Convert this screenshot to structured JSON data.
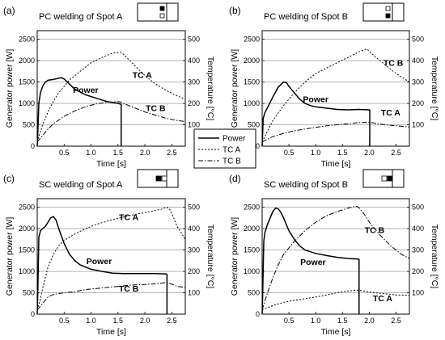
{
  "chart_data": {
    "legend": {
      "entries": [
        {
          "label": "Power",
          "style": "solid"
        },
        {
          "label": "TC A",
          "style": "dotted"
        },
        {
          "label": "TC B",
          "style": "dashdot"
        }
      ]
    },
    "panels": [
      {
        "letter": "(a)",
        "title": "PC welding of Spot A",
        "type": "line",
        "xlabel": "Time [s]",
        "ylabel_left": "Generator power [W]",
        "ylabel_right": "Temperature [°C]",
        "xlim": [
          0,
          2.75
        ],
        "ylim_left": [
          0,
          2700
        ],
        "ylim_right": [
          0,
          540
        ],
        "xticks": [
          "0.5",
          "1.0",
          "1.5",
          "2.0",
          "2.5"
        ],
        "yticks_left": [
          "0",
          "500",
          "1000",
          "1500",
          "2000",
          "2500"
        ],
        "yticks_right": [
          "100",
          "200",
          "300",
          "400",
          "500"
        ],
        "annotations": [
          {
            "text": "TC A",
            "x": 1.95,
            "y": 1600
          },
          {
            "text": "Power",
            "x": 0.9,
            "y": 1250
          },
          {
            "text": "TC B",
            "x": 2.2,
            "y": 820
          }
        ],
        "series": [
          {
            "name": "Power",
            "style": "solid",
            "axis": "left",
            "x": [
              0,
              0.01,
              0.03,
              0.06,
              0.1,
              0.15,
              0.2,
              0.3,
              0.4,
              0.45,
              0.5,
              0.6,
              0.7,
              0.9,
              1.1,
              1.3,
              1.5,
              1.56,
              1.56
            ],
            "y": [
              0,
              300,
              1000,
              1250,
              1400,
              1500,
              1540,
              1560,
              1590,
              1600,
              1570,
              1450,
              1330,
              1200,
              1120,
              1040,
              1000,
              980,
              0
            ]
          },
          {
            "name": "TC A",
            "style": "dotted",
            "axis": "right",
            "x": [
              0,
              0.05,
              0.1,
              0.2,
              0.3,
              0.4,
              0.5,
              0.6,
              0.8,
              1.0,
              1.2,
              1.4,
              1.55,
              1.6,
              1.8,
              2.0,
              2.2,
              2.4,
              2.6,
              2.75
            ],
            "y": [
              20,
              60,
              100,
              160,
              210,
              250,
              280,
              310,
              350,
              390,
              415,
              435,
              440,
              430,
              380,
              330,
              290,
              260,
              235,
              220
            ]
          },
          {
            "name": "TC B",
            "style": "dashdot",
            "axis": "right",
            "x": [
              0,
              0.1,
              0.2,
              0.3,
              0.5,
              0.7,
              0.9,
              1.1,
              1.3,
              1.5,
              1.55,
              1.6,
              1.8,
              2.0,
              2.2,
              2.4,
              2.6,
              2.75
            ],
            "y": [
              20,
              50,
              80,
              105,
              140,
              165,
              185,
              198,
              205,
              208,
              207,
              200,
              180,
              160,
              145,
              130,
              120,
              115
            ]
          }
        ]
      },
      {
        "letter": "(b)",
        "title": "PC welding of Spot B",
        "type": "line",
        "xlabel": "Time [s]",
        "ylabel_left": "Generator power [W]",
        "ylabel_right": "Temperature [°C]",
        "xlim": [
          0,
          2.75
        ],
        "ylim_left": [
          0,
          2700
        ],
        "ylim_right": [
          0,
          540
        ],
        "xticks": [
          "0.5",
          "1.0",
          "1.5",
          "2.0",
          "2.5"
        ],
        "yticks_left": [
          "0",
          "500",
          "1000",
          "1500",
          "2000",
          "2500"
        ],
        "yticks_right": [
          "100",
          "200",
          "300",
          "400",
          "500"
        ],
        "annotations": [
          {
            "text": "TC B",
            "x": 2.45,
            "y": 1880
          },
          {
            "text": "Power",
            "x": 1.0,
            "y": 1030
          },
          {
            "text": "TC A",
            "x": 2.4,
            "y": 720
          }
        ],
        "series": [
          {
            "name": "Power",
            "style": "solid",
            "axis": "left",
            "x": [
              0,
              0.02,
              0.05,
              0.1,
              0.2,
              0.3,
              0.4,
              0.45,
              0.5,
              0.6,
              0.7,
              0.8,
              0.9,
              1.0,
              1.2,
              1.4,
              1.6,
              1.8,
              2.0,
              2.01,
              2.01
            ],
            "y": [
              0,
              650,
              780,
              900,
              1150,
              1380,
              1500,
              1490,
              1400,
              1250,
              1100,
              1000,
              950,
              920,
              890,
              860,
              850,
              860,
              850,
              840,
              0
            ]
          },
          {
            "name": "TC A",
            "style": "dotted",
            "axis": "right",
            "x": [
              0,
              0.1,
              0.2,
              0.4,
              0.6,
              0.8,
              1.0,
              1.2,
              1.4,
              1.6,
              1.8,
              1.95,
              2.0,
              2.1,
              2.3,
              2.5,
              2.75
            ],
            "y": [
              20,
              70,
              120,
              190,
              250,
              300,
              340,
              365,
              390,
              415,
              440,
              455,
              445,
              420,
              380,
              340,
              300
            ]
          },
          {
            "name": "TC B",
            "style": "dashdot",
            "axis": "right",
            "x": [
              0,
              0.2,
              0.4,
              0.6,
              0.8,
              1.0,
              1.2,
              1.4,
              1.6,
              1.8,
              2.0,
              2.1,
              2.3,
              2.5,
              2.75
            ],
            "y": [
              20,
              45,
              60,
              72,
              80,
              88,
              95,
              100,
              105,
              110,
              112,
              108,
              100,
              95,
              90
            ]
          }
        ]
      },
      {
        "letter": "(c)",
        "title": "SC welding of Spot A",
        "type": "line",
        "xlabel": "Time [s]",
        "ylabel_left": "Generator power [W]",
        "ylabel_right": "Temperature [°C]",
        "xlim": [
          0,
          2.75
        ],
        "ylim_left": [
          0,
          2700
        ],
        "ylim_right": [
          0,
          540
        ],
        "xticks": [
          "0.5",
          "1.0",
          "1.5",
          "2.0",
          "2.5"
        ],
        "yticks_left": [
          "0",
          "500",
          "1000",
          "1500",
          "2000",
          "2500"
        ],
        "yticks_right": [
          "100",
          "200",
          "300",
          "400",
          "500"
        ],
        "annotations": [
          {
            "text": "TC A",
            "x": 1.7,
            "y": 2200
          },
          {
            "text": "Power",
            "x": 1.15,
            "y": 1170
          },
          {
            "text": "TC B",
            "x": 1.7,
            "y": 530
          }
        ],
        "series": [
          {
            "name": "Power",
            "style": "solid",
            "axis": "left",
            "x": [
              0,
              0.01,
              0.03,
              0.06,
              0.1,
              0.15,
              0.2,
              0.25,
              0.3,
              0.35,
              0.4,
              0.5,
              0.6,
              0.7,
              0.8,
              1.0,
              1.2,
              1.4,
              1.6,
              1.8,
              2.0,
              2.2,
              2.4,
              2.41,
              2.41
            ],
            "y": [
              0,
              500,
              1800,
              1950,
              2000,
              2050,
              2150,
              2250,
              2280,
              2200,
              2000,
              1650,
              1400,
              1250,
              1150,
              1050,
              1000,
              960,
              950,
              950,
              950,
              950,
              940,
              930,
              0
            ]
          },
          {
            "name": "TC A",
            "style": "dotted",
            "axis": "right",
            "x": [
              0,
              0.05,
              0.1,
              0.2,
              0.3,
              0.4,
              0.5,
              0.7,
              0.9,
              1.1,
              1.3,
              1.5,
              1.7,
              1.9,
              2.1,
              2.3,
              2.4,
              2.45,
              2.5,
              2.6,
              2.7,
              2.75
            ],
            "y": [
              20,
              60,
              120,
              220,
              280,
              320,
              345,
              375,
              400,
              420,
              435,
              448,
              460,
              470,
              480,
              490,
              500,
              495,
              470,
              410,
              370,
              350
            ]
          },
          {
            "name": "TC B",
            "style": "dashdot",
            "axis": "right",
            "x": [
              0,
              0.1,
              0.2,
              0.3,
              0.5,
              0.7,
              0.9,
              1.1,
              1.3,
              1.5,
              1.7,
              1.9,
              2.1,
              2.3,
              2.4,
              2.5,
              2.6,
              2.75
            ],
            "y": [
              20,
              50,
              80,
              92,
              100,
              105,
              115,
              120,
              125,
              130,
              135,
              138,
              140,
              145,
              148,
              140,
              130,
              125
            ]
          }
        ]
      },
      {
        "letter": "(d)",
        "title": "SC welding of Spot B",
        "type": "line",
        "xlabel": "Time [s]",
        "ylabel_left": "Generator power [W]",
        "ylabel_right": "Temperature [°C]",
        "xlim": [
          0,
          2.75
        ],
        "ylim_left": [
          0,
          2700
        ],
        "ylim_right": [
          0,
          540
        ],
        "xticks": [
          "0.5",
          "1.0",
          "1.5",
          "2.0",
          "2.5"
        ],
        "yticks_left": [
          "0",
          "500",
          "1000",
          "1500",
          "2000",
          "2500"
        ],
        "yticks_right": [
          "100",
          "200",
          "300",
          "400",
          "500"
        ],
        "annotations": [
          {
            "text": "TC B",
            "x": 2.1,
            "y": 1900
          },
          {
            "text": "Power",
            "x": 0.95,
            "y": 1150
          },
          {
            "text": "TC A",
            "x": 2.25,
            "y": 300
          }
        ],
        "series": [
          {
            "name": "Power",
            "style": "solid",
            "axis": "left",
            "x": [
              0,
              0.01,
              0.03,
              0.05,
              0.1,
              0.15,
              0.2,
              0.25,
              0.3,
              0.35,
              0.4,
              0.5,
              0.6,
              0.7,
              0.8,
              1.0,
              1.2,
              1.4,
              1.6,
              1.8,
              1.81,
              1.81
            ],
            "y": [
              0,
              500,
              1700,
              1900,
              2100,
              2250,
              2400,
              2480,
              2460,
              2380,
              2250,
              1950,
              1750,
              1600,
              1500,
              1420,
              1370,
              1330,
              1300,
              1290,
              1280,
              0
            ]
          },
          {
            "name": "TC A",
            "style": "dotted",
            "axis": "right",
            "x": [
              0,
              0.2,
              0.4,
              0.6,
              0.8,
              1.0,
              1.2,
              1.4,
              1.6,
              1.75,
              1.8,
              1.9,
              2.1,
              2.3,
              2.5,
              2.75
            ],
            "y": [
              20,
              40,
              55,
              65,
              72,
              80,
              90,
              100,
              108,
              112,
              112,
              108,
              100,
              95,
              90,
              88
            ]
          },
          {
            "name": "TC B",
            "style": "dashdot",
            "axis": "right",
            "x": [
              0,
              0.05,
              0.1,
              0.2,
              0.3,
              0.4,
              0.6,
              0.8,
              1.0,
              1.2,
              1.4,
              1.6,
              1.75,
              1.8,
              1.9,
              2.0,
              2.2,
              2.4,
              2.6,
              2.75
            ],
            "y": [
              20,
              60,
              100,
              170,
              230,
              280,
              340,
              390,
              430,
              460,
              480,
              495,
              505,
              500,
              470,
              430,
              370,
              320,
              280,
              260
            ]
          }
        ]
      }
    ]
  }
}
